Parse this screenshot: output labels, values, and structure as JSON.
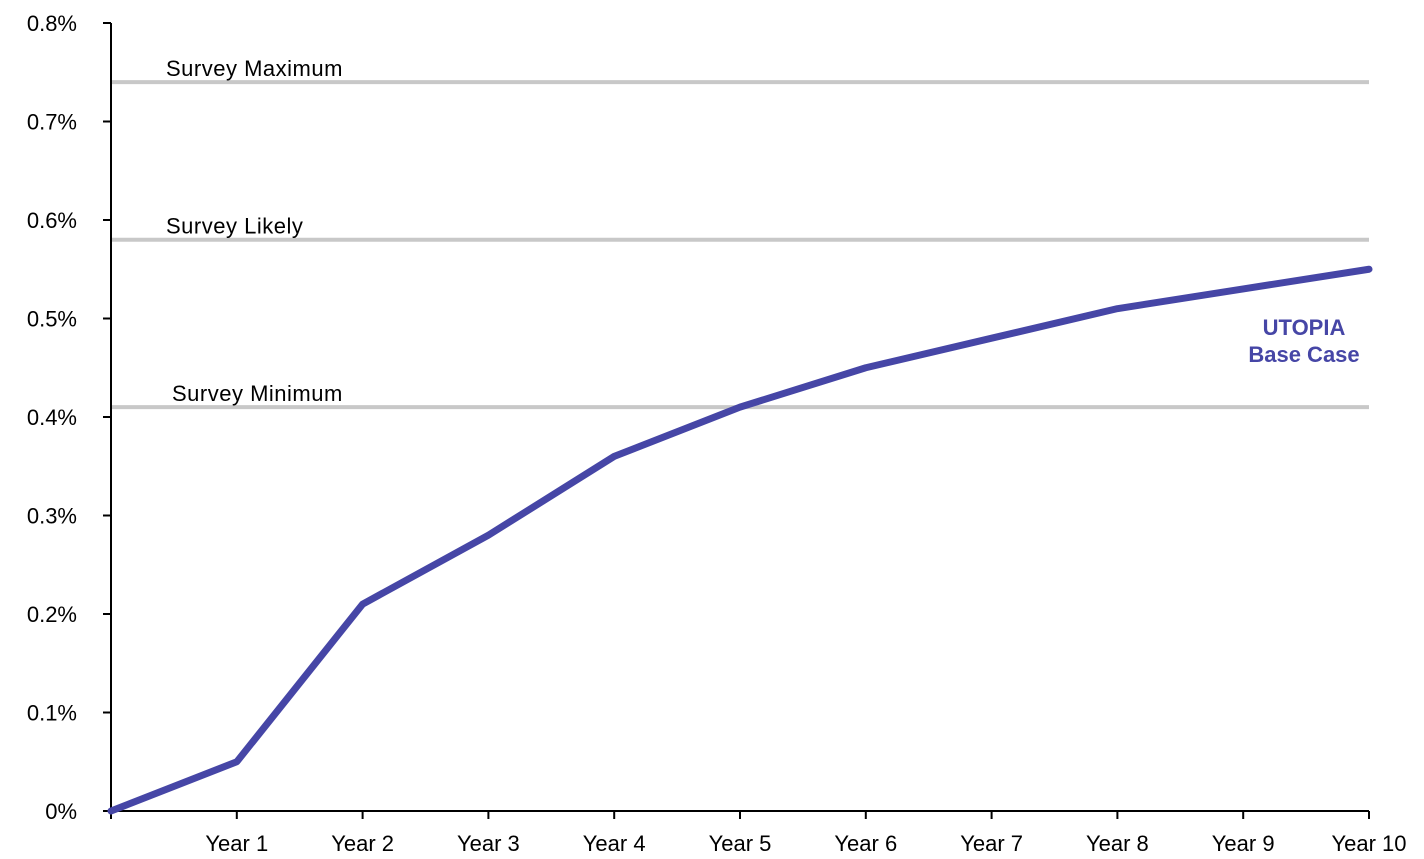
{
  "chart_data": {
    "type": "line",
    "categories": [
      "",
      "Year 1",
      "Year 2",
      "Year 3",
      "Year 4",
      "Year 5",
      "Year 6",
      "Year 7",
      "Year 8",
      "Year 9",
      "Year 10"
    ],
    "series": [
      {
        "name": "UTOPIA Base Case",
        "label_lines": [
          "UTOPIA",
          "Base Case"
        ],
        "values": [
          0.0,
          0.05,
          0.21,
          0.28,
          0.36,
          0.41,
          0.45,
          0.48,
          0.51,
          0.53,
          0.55
        ],
        "color": "#4646A6"
      }
    ],
    "reference_lines": [
      {
        "label": "Survey Maximum",
        "value": 0.74
      },
      {
        "label": "Survey Likely",
        "value": 0.58
      },
      {
        "label": "Survey Minimum",
        "value": 0.41
      }
    ],
    "y_ticks": [
      {
        "value": 0.0,
        "label": "0%"
      },
      {
        "value": 0.1,
        "label": "0.1%"
      },
      {
        "value": 0.2,
        "label": "0.2%"
      },
      {
        "value": 0.3,
        "label": "0.3%"
      },
      {
        "value": 0.4,
        "label": "0.4%"
      },
      {
        "value": 0.5,
        "label": "0.5%"
      },
      {
        "value": 0.6,
        "label": "0.6%"
      },
      {
        "value": 0.7,
        "label": "0.7%"
      },
      {
        "value": 0.8,
        "label": "0.8%"
      }
    ],
    "ylim": [
      0,
      0.8
    ],
    "unit": "%",
    "title": "",
    "xlabel": "",
    "ylabel": "",
    "grid": false,
    "reference_line_color": "#C8C8C8",
    "axis_color": "#000000"
  }
}
